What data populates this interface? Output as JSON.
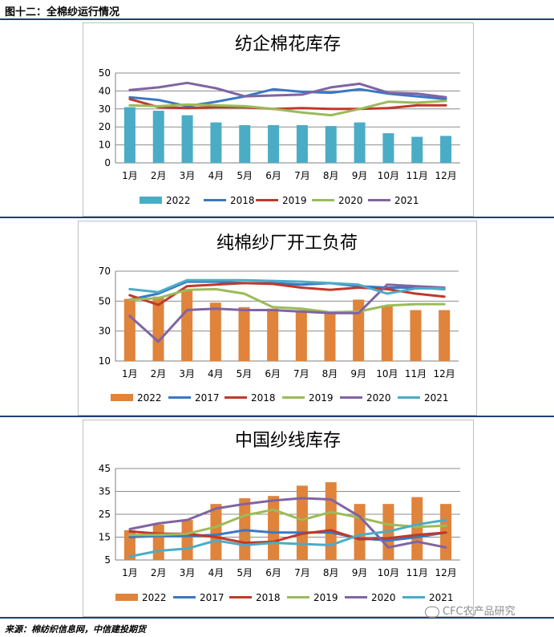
{
  "figure_title": "图十二：全棉纱运行情况",
  "source": "来源：棉纺织信息网，中信建投期货",
  "watermark": "CFC农产品研究",
  "chart_data": [
    {
      "type": "bar",
      "title": "纺企棉花库存",
      "categories": [
        "1月",
        "2月",
        "3月",
        "4月",
        "5月",
        "6月",
        "7月",
        "8月",
        "9月",
        "10月",
        "11月",
        "12月"
      ],
      "ylim": [
        0,
        50
      ],
      "yticks": [
        0,
        10,
        20,
        30,
        40,
        50
      ],
      "grid": true,
      "legend": "bottom",
      "bar_series": {
        "name": "2022",
        "color": "#4bacc6",
        "values": [
          31.0,
          29.0,
          26.5,
          22.5,
          21.0,
          21.0,
          21.0,
          20.5,
          22.5,
          16.5,
          14.5,
          15.0
        ]
      },
      "line_series": [
        {
          "name": "2018",
          "color": "#3a78c3",
          "values": [
            36.5,
            35.0,
            31.5,
            34.0,
            37.0,
            41.0,
            39.5,
            39.0,
            41.0,
            38.5,
            37.0,
            35.5
          ]
        },
        {
          "name": "2019",
          "color": "#c0392b",
          "values": [
            35.5,
            31.0,
            30.5,
            31.0,
            31.0,
            30.0,
            30.5,
            30.0,
            30.0,
            30.5,
            32.0,
            32.0
          ]
        },
        {
          "name": "2020",
          "color": "#9bbb59",
          "values": [
            32.0,
            31.5,
            32.5,
            32.0,
            31.5,
            30.0,
            28.0,
            26.5,
            30.0,
            34.0,
            33.5,
            34.5
          ]
        },
        {
          "name": "2021",
          "color": "#8064a2",
          "values": [
            40.5,
            42.0,
            44.5,
            41.5,
            37.0,
            37.5,
            38.0,
            42.0,
            44.0,
            39.0,
            38.5,
            36.5
          ]
        }
      ]
    },
    {
      "type": "bar",
      "title": "纯棉纱厂开工负荷",
      "categories": [
        "1月",
        "2月",
        "3月",
        "4月",
        "5月",
        "6月",
        "7月",
        "8月",
        "9月",
        "10月",
        "11月",
        "12月"
      ],
      "ylim": [
        10,
        70
      ],
      "yticks": [
        10,
        30,
        50,
        70
      ],
      "grid": true,
      "legend": "bottom",
      "bar_series": {
        "name": "2022",
        "color": "#e0833b",
        "values": [
          51.5,
          53.0,
          58.0,
          49.0,
          46.0,
          45.0,
          44.0,
          43.0,
          51.0,
          47.0,
          44.0,
          44.0
        ]
      },
      "line_series": [
        {
          "name": "2017",
          "color": "#3a78c3",
          "values": [
            51.0,
            55.0,
            63.0,
            63.0,
            62.0,
            62.0,
            61.0,
            62.0,
            60.0,
            59.0,
            59.0,
            58.0
          ]
        },
        {
          "name": "2018",
          "color": "#c0392b",
          "values": [
            54.0,
            47.5,
            60.0,
            61.0,
            62.0,
            61.5,
            59.0,
            57.5,
            59.0,
            58.0,
            55.0,
            53.0
          ]
        },
        {
          "name": "2019",
          "color": "#9bbb59",
          "values": [
            51.0,
            52.0,
            57.5,
            58.0,
            55.0,
            46.0,
            45.0,
            42.5,
            43.0,
            47.0,
            48.0,
            48.0
          ]
        },
        {
          "name": "2020",
          "color": "#8064a2",
          "values": [
            40.0,
            23.0,
            44.0,
            45.0,
            44.0,
            44.0,
            43.0,
            42.0,
            42.0,
            61.0,
            60.0,
            59.0
          ]
        },
        {
          "name": "2021",
          "color": "#4bacc6",
          "values": [
            58.0,
            56.0,
            64.0,
            64.0,
            64.0,
            63.5,
            63.0,
            62.0,
            61.0,
            55.0,
            58.5,
            58.5
          ]
        }
      ]
    },
    {
      "type": "bar",
      "title": "中国纱线库存",
      "categories": [
        "1月",
        "2月",
        "3月",
        "4月",
        "5月",
        "6月",
        "7月",
        "8月",
        "9月",
        "10月",
        "11月",
        "12月"
      ],
      "ylim": [
        5,
        45
      ],
      "yticks": [
        5,
        15,
        25,
        35,
        45
      ],
      "grid": true,
      "legend": "bottom",
      "bar_series": {
        "name": "2022",
        "color": "#e0833b",
        "values": [
          18.0,
          20.5,
          22.5,
          29.5,
          32.0,
          33.0,
          37.5,
          39.0,
          29.5,
          29.5,
          32.5,
          29.5
        ]
      },
      "line_series": [
        {
          "name": "2017",
          "color": "#3a78c3",
          "values": [
            15.0,
            15.5,
            15.5,
            16.0,
            18.0,
            17.0,
            17.0,
            17.0,
            14.5,
            13.5,
            15.0,
            17.0
          ]
        },
        {
          "name": "2018",
          "color": "#c0392b",
          "values": [
            17.5,
            16.5,
            16.5,
            15.0,
            12.5,
            13.0,
            16.5,
            18.0,
            14.0,
            14.5,
            16.0,
            17.0
          ]
        },
        {
          "name": "2019",
          "color": "#9bbb59",
          "values": [
            16.0,
            16.0,
            16.5,
            19.5,
            24.5,
            27.0,
            22.5,
            26.0,
            23.5,
            20.5,
            19.5,
            20.0
          ]
        },
        {
          "name": "2020",
          "color": "#8064a2",
          "values": [
            18.5,
            21.0,
            22.5,
            27.5,
            29.5,
            31.0,
            32.0,
            31.5,
            24.0,
            10.5,
            13.0,
            10.5
          ]
        },
        {
          "name": "2021",
          "color": "#4bacc6",
          "values": [
            6.5,
            9.0,
            10.0,
            13.5,
            11.5,
            12.5,
            12.0,
            11.5,
            16.0,
            17.5,
            20.5,
            22.5
          ]
        }
      ]
    }
  ]
}
